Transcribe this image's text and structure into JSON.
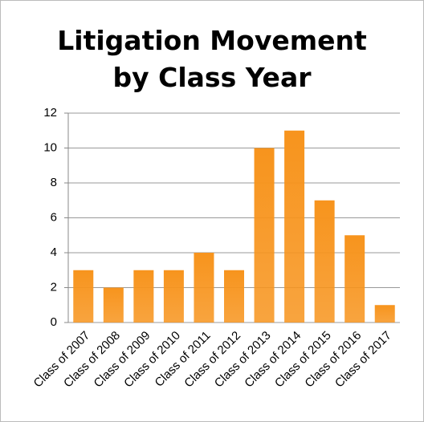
{
  "chart_data": {
    "type": "bar",
    "title": "Litigation Movement by Class Year",
    "categories": [
      "Class of 2007",
      "Class of 2008",
      "Class of 2009",
      "Class of 2010",
      "Class of 2011",
      "Class of 2012",
      "Class of 2013",
      "Class of 2014",
      "Class of 2015",
      "Class of 2016",
      "Class of 2017"
    ],
    "values": [
      3,
      2,
      3,
      3,
      4,
      3,
      10,
      11,
      7,
      5,
      1
    ],
    "color": "#f7941d",
    "ylim": [
      0,
      12
    ],
    "yticks": [
      0,
      2,
      4,
      6,
      8,
      10,
      12
    ],
    "grid": true
  }
}
